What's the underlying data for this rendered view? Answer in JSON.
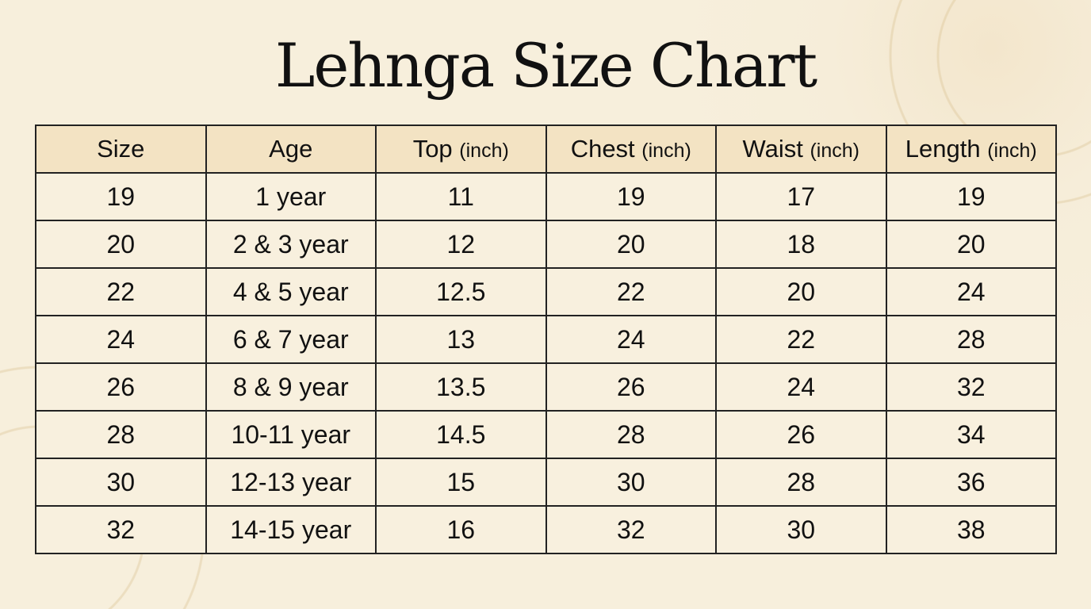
{
  "title": "Lehnga Size Chart",
  "colors": {
    "header_bg": "#f3e3c3",
    "cell_bg": "#f8f0de",
    "page_bg": "#f7efdc",
    "border": "#222222"
  },
  "table": {
    "headers": [
      {
        "label": "Size",
        "unit": ""
      },
      {
        "label": "Age",
        "unit": ""
      },
      {
        "label": "Top",
        "unit": "(inch)"
      },
      {
        "label": "Chest",
        "unit": "(inch)"
      },
      {
        "label": "Waist",
        "unit": "(inch)"
      },
      {
        "label": "Length",
        "unit": "(inch)"
      }
    ],
    "rows": [
      [
        "19",
        "1 year",
        "11",
        "19",
        "17",
        "19"
      ],
      [
        "20",
        "2 & 3 year",
        "12",
        "20",
        "18",
        "20"
      ],
      [
        "22",
        "4 & 5 year",
        "12.5",
        "22",
        "20",
        "24"
      ],
      [
        "24",
        "6 & 7 year",
        "13",
        "24",
        "22",
        "28"
      ],
      [
        "26",
        "8 & 9 year",
        "13.5",
        "26",
        "24",
        "32"
      ],
      [
        "28",
        "10-11 year",
        "14.5",
        "28",
        "26",
        "34"
      ],
      [
        "30",
        "12-13 year",
        "15",
        "30",
        "28",
        "36"
      ],
      [
        "32",
        "14-15 year",
        "16",
        "32",
        "30",
        "38"
      ]
    ]
  }
}
